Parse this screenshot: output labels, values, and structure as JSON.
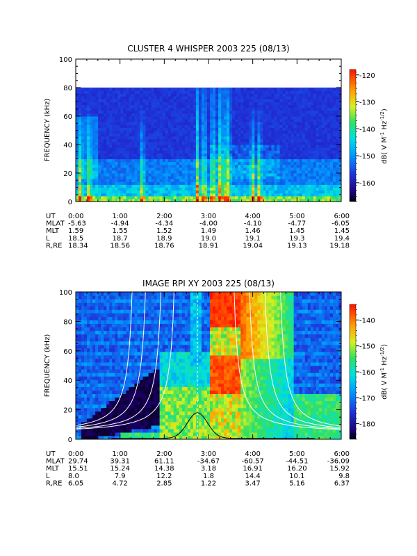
{
  "chart_data": [
    {
      "type": "heatmap",
      "title": "CLUSTER 4 WHISPER 2003 225 (08/13)",
      "ylabel": "FREQUENCY (kHz)",
      "ylim": [
        0,
        100
      ],
      "yticks": [
        "0",
        "20",
        "40",
        "60",
        "80",
        "100"
      ],
      "xlim_hours": [
        0,
        6
      ],
      "data_max_khz": 80,
      "colorbar": {
        "label": "dB( V M⁻¹ Hz⁻¹ᐟ²)",
        "label_parts": [
          "dB( V M",
          "-1",
          " Hz",
          "-1/2",
          ")"
        ],
        "range": [
          -167,
          -118
        ],
        "ticks": [
          "-120",
          "-130",
          "-140",
          "-150",
          "-160"
        ],
        "tick_values": [
          -120,
          -130,
          -140,
          -150,
          -160
        ]
      },
      "ephemeris": {
        "row_labels": [
          "UT",
          "MLAT",
          "MLT",
          "L",
          "R,RE"
        ],
        "columns": [
          [
            "0:00",
            "-5.63",
            "1.59",
            "18.5",
            "18.34"
          ],
          [
            "1:00",
            "-4.94",
            "1.55",
            "18.7",
            "18.56"
          ],
          [
            "2:00",
            "-4.34",
            "1.52",
            "18.9",
            "18.76"
          ],
          [
            "3:00",
            "-4.00",
            "1.49",
            "19.0",
            "18.91"
          ],
          [
            "4:00",
            "-4.10",
            "1.46",
            "19.1",
            "19.04"
          ],
          [
            "5:00",
            "-4.77",
            "1.45",
            "19.3",
            "19.13"
          ],
          [
            "6:00",
            "-6.05",
            "1.45",
            "19.4",
            "19.18"
          ]
        ]
      },
      "bright_bursts_ut_hours": [
        0.1,
        0.3,
        1.5,
        2.75,
        2.9,
        3.1,
        3.25,
        3.35,
        3.45,
        4.0,
        4.15
      ]
    },
    {
      "type": "heatmap",
      "title": "IMAGE RPI XY 2003 225 (08/13)",
      "ylabel": "FREQUENCY (kHz)",
      "ylim": [
        0,
        100
      ],
      "yticks": [
        "0",
        "20",
        "40",
        "60",
        "80",
        "100"
      ],
      "xlim_hours": [
        0,
        6
      ],
      "colorbar": {
        "label": "dB( V M⁻¹ Hz⁻¹ᐟ²)",
        "label_parts": [
          "dB( V M",
          "-1",
          " Hz",
          "-1/2",
          ")"
        ],
        "range": [
          -186,
          -134
        ],
        "ticks": [
          "-140",
          "-150",
          "-160",
          "-170",
          "-180"
        ],
        "tick_values": [
          -140,
          -150,
          -160,
          -170,
          -180
        ]
      },
      "ephemeris": {
        "row_labels": [
          "UT",
          "MLAT",
          "MLT",
          "L",
          "R,RE"
        ],
        "columns": [
          [
            "0:00",
            "29.74",
            "15.51",
            "8.0",
            "6.05"
          ],
          [
            "1:00",
            "39.31",
            "15.24",
            "7.9",
            "4.72"
          ],
          [
            "2:00",
            "61.11",
            "14.38",
            "12.2",
            "2.85"
          ],
          [
            "3:00",
            "-34.67",
            "3.18",
            "1.8",
            "1.22"
          ],
          [
            "4:00",
            "-60.57",
            "16.91",
            "14.4",
            "3.47"
          ],
          [
            "5:00",
            "-44.51",
            "16.20",
            "10.1",
            "5.16"
          ],
          [
            "6:00",
            "-36.09",
            "15.92",
            "9.8",
            "6.37"
          ]
        ]
      },
      "white_curves_ut_hours": {
        "inbound_asymptotes": [
          1.35,
          1.65,
          2.0,
          2.3
        ],
        "outbound_asymptotes": [
          3.5,
          3.85,
          4.2,
          4.55
        ]
      },
      "black_curve_peak": {
        "ut_hours": 2.75,
        "frequency_khz": 18
      }
    }
  ]
}
